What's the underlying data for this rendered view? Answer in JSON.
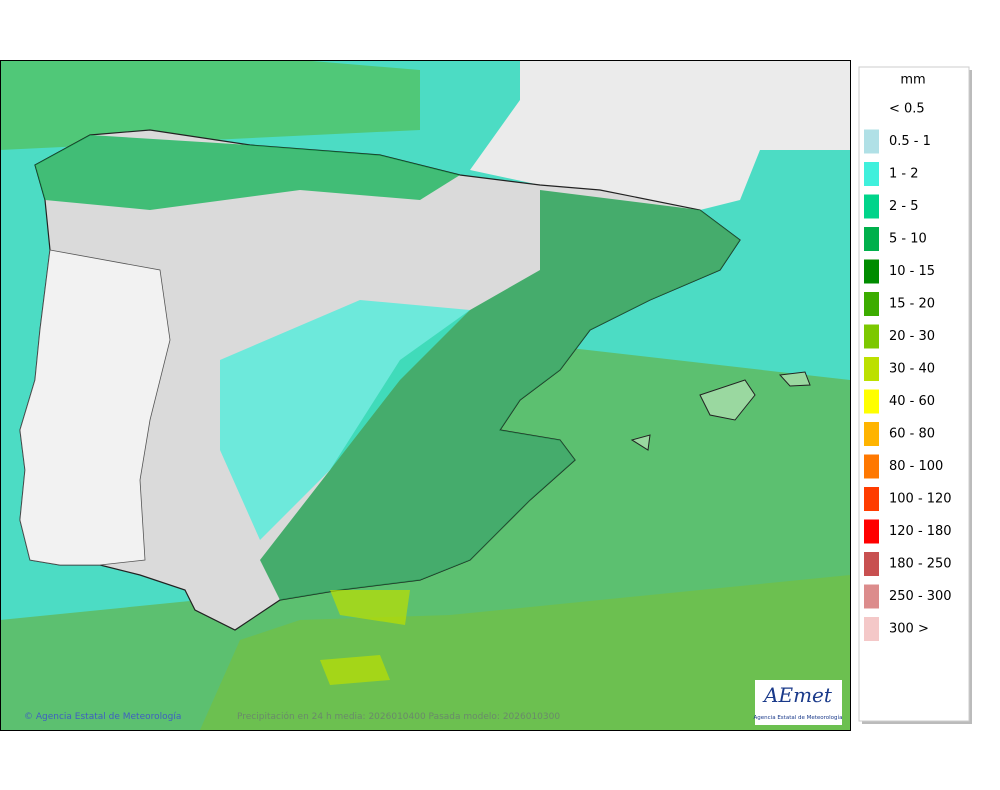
{
  "legend": {
    "title": "mm",
    "entries": [
      {
        "label": "< 0.5",
        "color": "#ffffff"
      },
      {
        "label": "0.5 - 1",
        "color": "#b0e0e6"
      },
      {
        "label": "1 - 2",
        "color": "#3ff0dc"
      },
      {
        "label": "2 - 5",
        "color": "#00d48a"
      },
      {
        "label": "5 - 10",
        "color": "#00b04c"
      },
      {
        "label": "10 - 15",
        "color": "#008c00"
      },
      {
        "label": "15 - 20",
        "color": "#3cac00"
      },
      {
        "label": "20 - 30",
        "color": "#7cc800"
      },
      {
        "label": "30 - 40",
        "color": "#bce000"
      },
      {
        "label": "40 - 60",
        "color": "#ffff00"
      },
      {
        "label": "60 - 80",
        "color": "#ffb400"
      },
      {
        "label": "80 - 100",
        "color": "#ff7800"
      },
      {
        "label": "100 - 120",
        "color": "#ff3c00"
      },
      {
        "label": "120 - 180",
        "color": "#ff0000"
      },
      {
        "label": "180 - 250",
        "color": "#c85050"
      },
      {
        "label": "250 - 300",
        "color": "#dc8c8c"
      },
      {
        "label": "300 >",
        "color": "#f4c8c8"
      }
    ]
  },
  "footer": {
    "copyright": "© Agencia Estatal de Meteorología",
    "caption": "Precipitación en 24 h media: 2026010400 Pasada modelo: 2026010300"
  },
  "logo": {
    "name": "AEmet",
    "subtitle": "Agencia Estatal de Meteorología"
  }
}
